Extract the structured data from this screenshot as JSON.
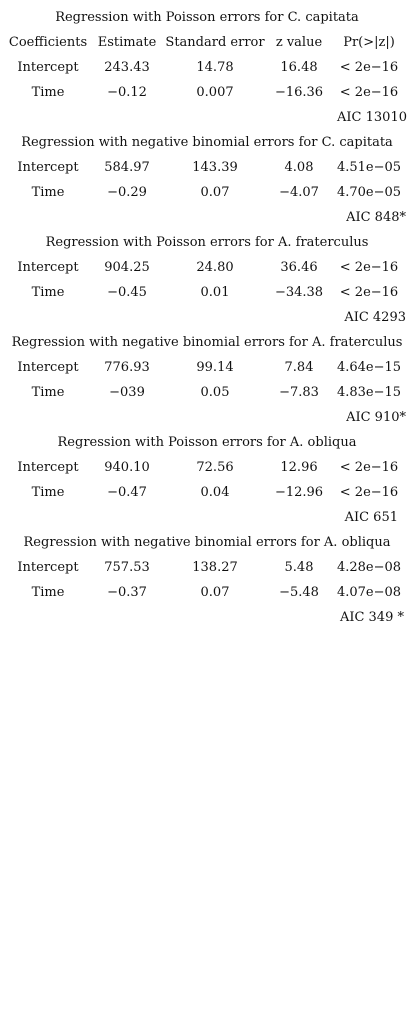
{
  "header": [
    "Coefficients",
    "Estimate",
    "Standard error",
    "z value",
    "Pr(>|z|)"
  ],
  "blocks": [
    {
      "title": "Regression with Poisson errors for C. capitata",
      "rows": [
        [
          "Intercept",
          "243.43",
          "14.78",
          "16.48",
          "< 2e−16"
        ],
        [
          "Time",
          "−0.12",
          "0.007",
          "−16.36",
          "< 2e−16"
        ]
      ],
      "aic": "AIC 13010"
    },
    {
      "title": "Regression with negative binomial errors for C. capitata",
      "rows": [
        [
          "Intercept",
          "584.97",
          "143.39",
          "4.08",
          "4.51e−05"
        ],
        [
          "Time",
          "−0.29",
          "0.07",
          "−4.07",
          "4.70e−05"
        ]
      ],
      "aic": "AIC 848*"
    },
    {
      "title": "Regression with Poisson errors for A. fraterculus",
      "rows": [
        [
          "Intercept",
          "904.25",
          "24.80",
          "36.46",
          "< 2e−16"
        ],
        [
          "Time",
          "−0.45",
          "0.01",
          "−34.38",
          "< 2e−16"
        ]
      ],
      "aic": "AIC 4293"
    },
    {
      "title": "Regression with negative binomial errors for A. fraterculus",
      "rows": [
        [
          "Intercept",
          "776.93",
          "99.14",
          "7.84",
          "4.64e−15"
        ],
        [
          "Time",
          "−039",
          "0.05",
          "−7.83",
          "4.83e−15"
        ]
      ],
      "aic": "AIC 910*"
    },
    {
      "title": "Regression with Poisson errors for A. obliqua",
      "rows": [
        [
          "Intercept",
          "940.10",
          "72.56",
          "12.96",
          "< 2e−16"
        ],
        [
          "Time",
          "−0.47",
          "0.04",
          "−12.96",
          "< 2e−16"
        ]
      ],
      "aic": "AIC 651"
    },
    {
      "title": "Regression with negative binomial errors for A. obliqua",
      "rows": [
        [
          "Intercept",
          "757.53",
          "138.27",
          "5.48",
          "4.28e−08"
        ],
        [
          "Time",
          "−0.37",
          "0.07",
          "−5.48",
          "4.07e−08"
        ]
      ],
      "aic": "AIC 349 *"
    }
  ]
}
